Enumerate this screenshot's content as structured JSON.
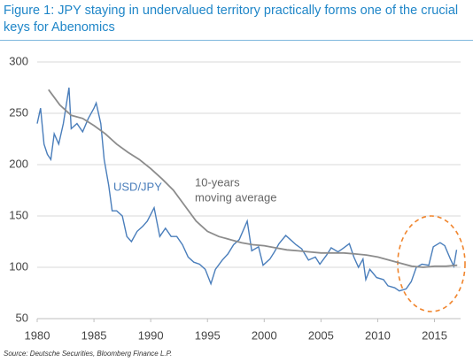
{
  "chart_data": {
    "type": "line",
    "title": "Figure 1: JPY staying in undervalued territory practically forms one of the crucial keys for Abenomics",
    "source": "Source: Deutsche Securities, Bloomberg Finance L.P.",
    "annotations": [
      "USD/JPY",
      "10-years",
      "moving average"
    ],
    "xlim": [
      1980,
      2017.3
    ],
    "xticks": [
      1980,
      1985,
      1990,
      1995,
      2000,
      2005,
      2010,
      2015
    ],
    "ylim": [
      50,
      300
    ],
    "yticks": [
      50,
      100,
      150,
      200,
      250,
      300
    ],
    "grid": true,
    "series": [
      {
        "name": "USD/JPY",
        "color": "#4a7ebb",
        "x": [
          1980.0,
          1980.3,
          1980.6,
          1980.9,
          1981.2,
          1981.5,
          1981.9,
          1982.3,
          1982.8,
          1983.0,
          1983.5,
          1984.0,
          1984.5,
          1985.0,
          1985.2,
          1985.6,
          1985.9,
          1986.3,
          1986.6,
          1987.0,
          1987.5,
          1987.9,
          1988.3,
          1988.8,
          1989.3,
          1989.7,
          1990.3,
          1990.8,
          1991.3,
          1991.8,
          1992.3,
          1992.8,
          1993.3,
          1993.8,
          1994.3,
          1994.8,
          1995.3,
          1995.7,
          1996.3,
          1996.8,
          1997.3,
          1997.8,
          1998.5,
          1998.9,
          1999.5,
          1999.9,
          2000.5,
          2000.9,
          2001.3,
          2001.9,
          2002.3,
          2002.8,
          2003.3,
          2003.9,
          2004.5,
          2004.9,
          2005.5,
          2005.9,
          2006.5,
          2006.9,
          2007.5,
          2007.9,
          2008.3,
          2008.7,
          2008.95,
          2009.3,
          2009.9,
          2010.5,
          2010.9,
          2011.5,
          2011.9,
          2012.5,
          2012.95,
          2013.4,
          2013.9,
          2014.5,
          2014.9,
          2015.5,
          2015.9,
          2016.4,
          2016.7,
          2016.95
        ],
        "values": [
          240,
          255,
          220,
          210,
          205,
          230,
          220,
          240,
          275,
          235,
          240,
          232,
          245,
          255,
          260,
          240,
          205,
          180,
          155,
          155,
          150,
          130,
          125,
          135,
          140,
          145,
          158,
          130,
          138,
          130,
          130,
          122,
          110,
          105,
          103,
          98,
          84,
          98,
          107,
          113,
          122,
          127,
          145,
          116,
          120,
          102,
          108,
          115,
          123,
          131,
          127,
          122,
          118,
          107,
          110,
          103,
          112,
          119,
          115,
          118,
          123,
          110,
          100,
          108,
          88,
          98,
          90,
          88,
          82,
          80,
          77,
          79,
          86,
          100,
          103,
          102,
          120,
          124,
          121,
          108,
          101,
          117
        ]
      },
      {
        "name": "10-years moving average",
        "color": "#8c8c8c",
        "x": [
          1981,
          1982,
          1983,
          1984,
          1985,
          1986,
          1987,
          1988,
          1989,
          1990,
          1991,
          1992,
          1993,
          1994,
          1995,
          1996,
          1997,
          1998,
          1999,
          2000,
          2001,
          2002,
          2003,
          2004,
          2005,
          2006,
          2007,
          2008,
          2009,
          2010,
          2011,
          2012,
          2013,
          2014,
          2015,
          2016,
          2017
        ],
        "values": [
          273,
          258,
          248,
          245,
          238,
          230,
          220,
          212,
          205,
          196,
          186,
          175,
          160,
          145,
          135,
          130,
          127,
          124,
          122,
          121,
          119,
          117,
          116,
          115,
          114,
          114,
          114,
          113,
          112,
          110,
          107,
          104,
          101,
          100,
          101,
          101,
          102
        ]
      }
    ]
  }
}
